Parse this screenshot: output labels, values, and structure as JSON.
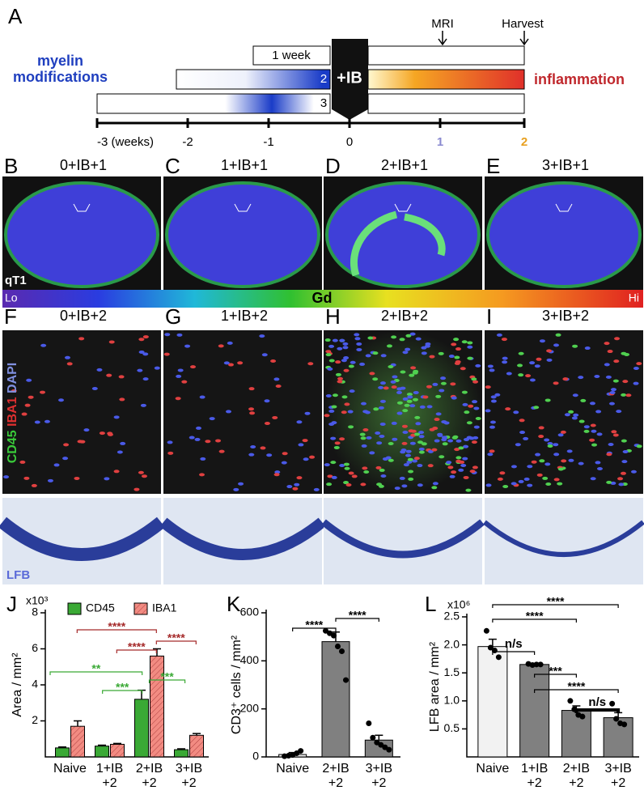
{
  "panel_a": {
    "letter": "A",
    "left_label": "myelin\nmodifications",
    "right_label": "inflammation",
    "durations": [
      "1 week",
      "2",
      "3"
    ],
    "treatment": "+IB",
    "events": [
      "MRI",
      "Harvest"
    ],
    "timeline_ticks": [
      "-3 (weeks)",
      "-2",
      "-1",
      "0",
      "1",
      "2"
    ]
  },
  "mri_row": {
    "letters": [
      "B",
      "C",
      "D",
      "E"
    ],
    "titles": [
      "0+IB+1",
      "1+IB+1",
      "2+IB+1",
      "3+IB+1"
    ],
    "image_label": "qT1",
    "scale": {
      "low": "Lo",
      "title": "Gd",
      "high": "Hi"
    }
  },
  "histology_row": {
    "letters": [
      "F",
      "G",
      "H",
      "I"
    ],
    "titles": [
      "0+IB+2",
      "1+IB+2",
      "2+IB+2",
      "3+IB+2"
    ],
    "stain_labels": [
      "CD45",
      "IBA1",
      "DAPI"
    ],
    "lfb_label": "LFB"
  },
  "chart_data": [
    {
      "type": "bar",
      "letter": "J",
      "ylabel": "Area / mm²",
      "multiplier": "x10³",
      "categories": [
        "Naive",
        "1+IB\n+2",
        "2+IB\n+2",
        "3+IB\n+2"
      ],
      "series": [
        {
          "name": "CD45",
          "color": "#3aa935",
          "values": [
            0.5,
            0.6,
            3.2,
            0.4
          ],
          "errors": [
            0.05,
            0.05,
            0.5,
            0.05
          ]
        },
        {
          "name": "IBA1",
          "color": "#f28b82",
          "values": [
            1.7,
            0.7,
            5.6,
            1.2
          ],
          "errors": [
            0.3,
            0.05,
            0.4,
            0.1
          ]
        }
      ],
      "ylim": [
        0,
        8
      ],
      "yticks": [
        2,
        4,
        6,
        8
      ],
      "annotations": [
        {
          "text": "****",
          "color": "#a52a2a"
        },
        {
          "text": "****",
          "color": "#a52a2a"
        },
        {
          "text": "****",
          "color": "#a52a2a"
        },
        {
          "text": "**",
          "color": "#3aa935"
        },
        {
          "text": "***",
          "color": "#3aa935"
        },
        {
          "text": "***",
          "color": "#3aa935"
        }
      ]
    },
    {
      "type": "bar",
      "letter": "K",
      "ylabel": "CD3⁺ cells / mm²",
      "categories": [
        "Naive",
        "2+IB\n+2",
        "3+IB\n+2"
      ],
      "series": [
        {
          "color": "#808080",
          "values": [
            10,
            480,
            70
          ],
          "errors": [
            8,
            40,
            20
          ],
          "points": [
            [
              3,
              5,
              8,
              15,
              25
            ],
            [
              525,
              515,
              505,
              460,
              440,
              320
            ],
            [
              140,
              80,
              60,
              50,
              40,
              30
            ]
          ]
        }
      ],
      "bar_colors": [
        "#f2f2f2",
        "#808080",
        "#808080"
      ],
      "ylim": [
        0,
        600
      ],
      "yticks": [
        0,
        200,
        400,
        600
      ],
      "annotations": [
        {
          "text": "****",
          "color": "#000000"
        },
        {
          "text": "****",
          "color": "#000000"
        }
      ]
    },
    {
      "type": "bar",
      "letter": "L",
      "ylabel": "LFB area / mm²",
      "multiplier": "x10⁶",
      "categories": [
        "Naive",
        "1+IB\n+2",
        "2+IB\n+2",
        "3+IB\n+2"
      ],
      "series": [
        {
          "color": "#808080",
          "values": [
            1.97,
            1.65,
            0.83,
            0.7
          ],
          "errors": [
            0.13,
            0.02,
            0.08,
            0.09
          ],
          "points": [
            [
              2.25,
              1.95,
              1.9,
              1.78
            ],
            [
              1.66,
              1.64,
              1.65,
              1.65
            ],
            [
              1.0,
              0.85,
              0.75,
              0.72
            ],
            [
              0.95,
              0.68,
              0.6,
              0.58
            ]
          ]
        }
      ],
      "bar_colors": [
        "#f2f2f2",
        "#808080",
        "#808080",
        "#808080"
      ],
      "ylim": [
        0,
        2.5
      ],
      "yticks": [
        0.5,
        {
          "value": 1,
          "label": "1.0"
        },
        1.5,
        {
          "value": 2,
          "label": "2.0"
        },
        2.5
      ],
      "annotations": [
        {
          "text": "****",
          "color": "#000000"
        },
        {
          "text": "****",
          "color": "#000000"
        },
        {
          "text": "n/s",
          "color": "#000000"
        },
        {
          "text": "***",
          "color": "#000000"
        },
        {
          "text": "****",
          "color": "#000000"
        },
        {
          "text": "n/s",
          "color": "#000000"
        }
      ]
    }
  ]
}
